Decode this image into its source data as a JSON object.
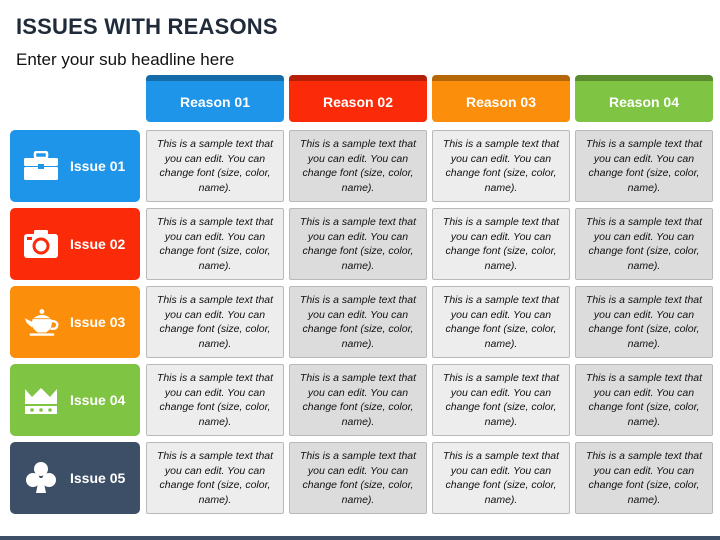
{
  "title": "ISSUES WITH REASONS",
  "subtitle": "Enter your sub headline here",
  "reasons": [
    {
      "label": "Reason 01",
      "color": "#1f95ea"
    },
    {
      "label": "Reason 02",
      "color": "#fb2b0a"
    },
    {
      "label": "Reason 03",
      "color": "#fb8e0a"
    },
    {
      "label": "Reason 04",
      "color": "#7fc443"
    }
  ],
  "issues": [
    {
      "label": "Issue 01",
      "color": "#1f95ea",
      "icon": "briefcase-icon"
    },
    {
      "label": "Issue 02",
      "color": "#fb2b0a",
      "icon": "camera-icon"
    },
    {
      "label": "Issue 03",
      "color": "#fb8e0a",
      "icon": "teapot-icon"
    },
    {
      "label": "Issue 04",
      "color": "#7fc443",
      "icon": "crown-icon"
    },
    {
      "label": "Issue 05",
      "color": "#3d4f66",
      "icon": "club-icon"
    }
  ],
  "cell_text": "This is a sample text that you can edit. You can change font (size, color, name)."
}
